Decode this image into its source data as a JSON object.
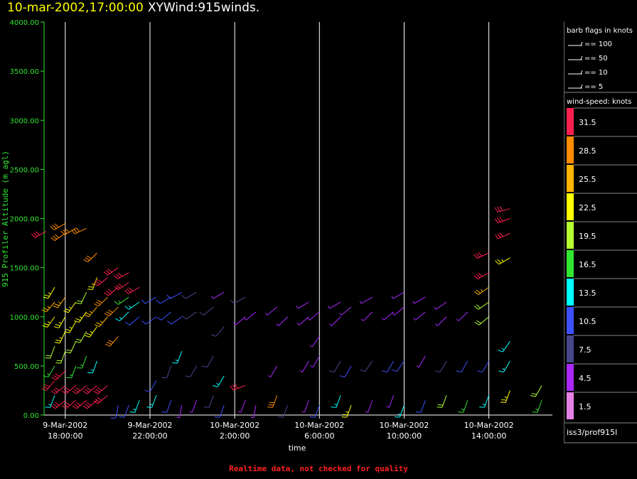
{
  "header": {
    "datetime": "10-mar-2002,17:00:00",
    "product": "XYWind:915winds."
  },
  "footer_note": "Realtime data, not checked for quality",
  "legend": {
    "barb_title": "barb flags in knots",
    "barbs": [
      "== 100",
      "== 50",
      "== 10",
      "== 5"
    ],
    "speed_title": "wind-speed: knots",
    "speed_bins": [
      {
        "label": "31.5",
        "color": "#ff2050"
      },
      {
        "label": "28.5",
        "color": "#ff8c00"
      },
      {
        "label": "25.5",
        "color": "#ffb400"
      },
      {
        "label": "22.5",
        "color": "#ffff00"
      },
      {
        "label": "19.5",
        "color": "#b4ff32"
      },
      {
        "label": "16.5",
        "color": "#32e632"
      },
      {
        "label": "13.5",
        "color": "#00ffff"
      },
      {
        "label": "10.5",
        "color": "#3c50ff"
      },
      {
        "label": "7.5",
        "color": "#46468c"
      },
      {
        "label": "4.5",
        "color": "#aa28ff"
      },
      {
        "label": "1.5",
        "color": "#e682e6"
      }
    ],
    "source": "iss3/prof915l"
  },
  "chart_data": {
    "type": "scatter",
    "title": "10-mar-2002,17:00:00 XYWind:915winds.",
    "xlabel": "time",
    "ylabel": "915 Profiler Altitude (m agl)",
    "ylim": [
      0,
      4000
    ],
    "yticks": [
      "0.00",
      "500.00",
      "1000.00",
      "1500.00",
      "2000.00",
      "2500.00",
      "3000.00",
      "3500.00",
      "4000.00"
    ],
    "xticks": [
      {
        "line1": "9-Mar-2002",
        "line2": "18:00:00"
      },
      {
        "line1": "9-Mar-2002",
        "line2": "22:00:00"
      },
      {
        "line1": "10-Mar-2002",
        "line2": "2:00:00"
      },
      {
        "line1": "10-Mar-2002",
        "line2": "6:00:00"
      },
      {
        "line1": "10-Mar-2002",
        "line2": "10:00:00"
      },
      {
        "line1": "10-Mar-2002",
        "line2": "14:00:00"
      }
    ],
    "xlim_hours": [
      -1,
      23
    ],
    "tick_hours": [
      0,
      4,
      8,
      12,
      16,
      20
    ],
    "grid": "vertical lines at major ticks",
    "profiles": [
      {
        "t": -0.9,
        "levels": [
          [
            1870,
            31.5,
            240
          ]
        ]
      },
      {
        "t": -0.5,
        "levels": [
          [
            200,
            13.5,
            200
          ],
          [
            350,
            31.5,
            220
          ],
          [
            500,
            16.5,
            210
          ],
          [
            700,
            19.5,
            200
          ],
          [
            1000,
            22.5,
            215
          ],
          [
            1150,
            25.5,
            220
          ],
          [
            1300,
            22.5,
            210
          ]
        ]
      },
      {
        "t": 0,
        "levels": [
          [
            150,
            31.5,
            230
          ],
          [
            300,
            31.5,
            230
          ],
          [
            450,
            31.5,
            225
          ],
          [
            650,
            19.5,
            200
          ],
          [
            850,
            22.5,
            205
          ],
          [
            1000,
            22.5,
            210
          ],
          [
            1200,
            25.5,
            215
          ],
          [
            1850,
            28.5,
            235
          ],
          [
            1950,
            28.5,
            240
          ]
        ]
      },
      {
        "t": 0.5,
        "levels": [
          [
            150,
            31.5,
            230
          ],
          [
            300,
            31.5,
            230
          ],
          [
            500,
            16.5,
            200
          ],
          [
            750,
            19.5,
            205
          ],
          [
            950,
            22.5,
            210
          ],
          [
            1150,
            22.5,
            215
          ],
          [
            1900,
            28.5,
            240
          ]
        ]
      },
      {
        "t": 1,
        "levels": [
          [
            150,
            31.5,
            230
          ],
          [
            300,
            31.5,
            230
          ],
          [
            600,
            16.5,
            200
          ],
          [
            850,
            19.5,
            210
          ],
          [
            1050,
            22.5,
            215
          ],
          [
            1250,
            19.5,
            205
          ],
          [
            1900,
            28.5,
            245
          ]
        ]
      },
      {
        "t": 1.5,
        "levels": [
          [
            150,
            31.5,
            230
          ],
          [
            300,
            31.5,
            230
          ],
          [
            550,
            13.5,
            200
          ],
          [
            900,
            22.5,
            215
          ],
          [
            1100,
            25.5,
            220
          ],
          [
            1400,
            22.5,
            200
          ],
          [
            1650,
            28.5,
            225
          ]
        ]
      },
      {
        "t": 2,
        "levels": [
          [
            200,
            31.5,
            230
          ],
          [
            300,
            31.5,
            230
          ],
          [
            1000,
            25.5,
            220
          ],
          [
            1200,
            28.5,
            225
          ],
          [
            1400,
            31.5,
            230
          ]
        ]
      },
      {
        "t": 2.5,
        "levels": [
          [
            100,
            10.5,
            190
          ],
          [
            800,
            28.5,
            220
          ],
          [
            1100,
            28.5,
            225
          ],
          [
            1300,
            31.5,
            230
          ],
          [
            1500,
            31.5,
            235
          ]
        ]
      },
      {
        "t": 3,
        "levels": [
          [
            100,
            10.5,
            200
          ],
          [
            1050,
            13.5,
            225
          ],
          [
            1200,
            16.5,
            235
          ],
          [
            1350,
            31.5,
            235
          ],
          [
            1450,
            31.5,
            240
          ]
        ]
      },
      {
        "t": 3.5,
        "levels": [
          [
            150,
            13.5,
            200
          ],
          [
            1000,
            10.5,
            230
          ],
          [
            1150,
            13.5,
            235
          ],
          [
            1300,
            31.5,
            240
          ]
        ]
      },
      {
        "t": 4.3,
        "levels": [
          [
            200,
            13.5,
            200
          ],
          [
            350,
            10.5,
            210
          ],
          [
            1000,
            10.5,
            235
          ],
          [
            1200,
            10.5,
            240
          ]
        ]
      },
      {
        "t": 5,
        "levels": [
          [
            150,
            10.5,
            200
          ],
          [
            500,
            7.5,
            200
          ],
          [
            1050,
            10.5,
            230
          ],
          [
            1200,
            10.5,
            240
          ]
        ]
      },
      {
        "t": 5.5,
        "levels": [
          [
            100,
            4.5,
            190
          ],
          [
            650,
            13.5,
            200
          ],
          [
            1000,
            10.5,
            235
          ],
          [
            1250,
            10.5,
            240
          ]
        ]
      },
      {
        "t": 6.2,
        "levels": [
          [
            150,
            4.5,
            200
          ],
          [
            500,
            7.5,
            210
          ],
          [
            1050,
            7.5,
            235
          ],
          [
            1250,
            7.5,
            240
          ]
        ]
      },
      {
        "t": 7,
        "levels": [
          [
            200,
            7.5,
            200
          ],
          [
            600,
            7.5,
            210
          ],
          [
            1100,
            7.5,
            230
          ]
        ]
      },
      {
        "t": 7.5,
        "levels": [
          [
            100,
            10.5,
            200
          ],
          [
            400,
            13.5,
            210
          ],
          [
            900,
            7.5,
            220
          ],
          [
            1250,
            4.5,
            240
          ]
        ]
      },
      {
        "t": 8.5,
        "levels": [
          [
            150,
            4.5,
            200
          ],
          [
            300,
            31.5,
            250
          ],
          [
            1000,
            4.5,
            230
          ],
          [
            1200,
            7.5,
            240
          ]
        ]
      },
      {
        "t": 9,
        "levels": [
          [
            100,
            4.5,
            190
          ],
          [
            1050,
            4.5,
            230
          ]
        ]
      },
      {
        "t": 10,
        "levels": [
          [
            200,
            28.5,
            200
          ],
          [
            500,
            4.5,
            210
          ],
          [
            1100,
            4.5,
            230
          ]
        ]
      },
      {
        "t": 10.5,
        "levels": [
          [
            100,
            7.5,
            200
          ],
          [
            1000,
            4.5,
            225
          ]
        ]
      },
      {
        "t": 11.5,
        "levels": [
          [
            150,
            4.5,
            200
          ],
          [
            550,
            4.5,
            210
          ],
          [
            1000,
            4.5,
            230
          ],
          [
            1150,
            4.5,
            240
          ]
        ]
      },
      {
        "t": 12,
        "levels": [
          [
            100,
            10.5,
            200
          ],
          [
            600,
            4.5,
            210
          ],
          [
            800,
            4.5,
            215
          ],
          [
            1050,
            4.5,
            230
          ]
        ]
      },
      {
        "t": 13,
        "levels": [
          [
            200,
            13.5,
            200
          ],
          [
            550,
            7.5,
            210
          ],
          [
            1000,
            4.5,
            225
          ],
          [
            1150,
            4.5,
            240
          ]
        ]
      },
      {
        "t": 13.5,
        "levels": [
          [
            100,
            22.5,
            200
          ],
          [
            500,
            10.5,
            210
          ],
          [
            1100,
            4.5,
            230
          ]
        ]
      },
      {
        "t": 14.5,
        "levels": [
          [
            150,
            4.5,
            200
          ],
          [
            550,
            7.5,
            215
          ],
          [
            1050,
            4.5,
            225
          ],
          [
            1200,
            4.5,
            240
          ]
        ]
      },
      {
        "t": 15.5,
        "levels": [
          [
            200,
            4.5,
            200
          ],
          [
            550,
            10.5,
            210
          ],
          [
            1050,
            4.5,
            230
          ]
        ]
      },
      {
        "t": 16,
        "levels": [
          [
            100,
            13.5,
            200
          ],
          [
            550,
            10.5,
            215
          ],
          [
            1100,
            4.5,
            230
          ],
          [
            1250,
            4.5,
            240
          ]
        ]
      },
      {
        "t": 17,
        "levels": [
          [
            150,
            10.5,
            200
          ],
          [
            600,
            4.5,
            210
          ],
          [
            1050,
            4.5,
            230
          ],
          [
            1200,
            4.5,
            240
          ]
        ]
      },
      {
        "t": 18,
        "levels": [
          [
            200,
            19.5,
            200
          ],
          [
            550,
            7.5,
            210
          ],
          [
            1000,
            4.5,
            225
          ],
          [
            1150,
            4.5,
            235
          ]
        ]
      },
      {
        "t": 19,
        "levels": [
          [
            150,
            16.5,
            200
          ],
          [
            550,
            10.5,
            210
          ],
          [
            1050,
            4.5,
            225
          ]
        ]
      },
      {
        "t": 20,
        "levels": [
          [
            200,
            13.5,
            200
          ],
          [
            550,
            10.5,
            210
          ],
          [
            1000,
            19.5,
            230
          ],
          [
            1150,
            19.5,
            235
          ],
          [
            1300,
            25.5,
            235
          ],
          [
            1450,
            31.5,
            240
          ],
          [
            1650,
            31.5,
            245
          ]
        ]
      },
      {
        "t": 21,
        "levels": [
          [
            250,
            22.5,
            200
          ],
          [
            550,
            13.5,
            210
          ],
          [
            750,
            13.5,
            215
          ],
          [
            1600,
            22.5,
            240
          ],
          [
            1850,
            31.5,
            245
          ],
          [
            2000,
            31.5,
            250
          ],
          [
            2100,
            31.5,
            255
          ]
        ]
      },
      {
        "t": 22.5,
        "levels": [
          [
            150,
            16.5,
            200
          ],
          [
            300,
            19.5,
            210
          ]
        ]
      }
    ]
  }
}
